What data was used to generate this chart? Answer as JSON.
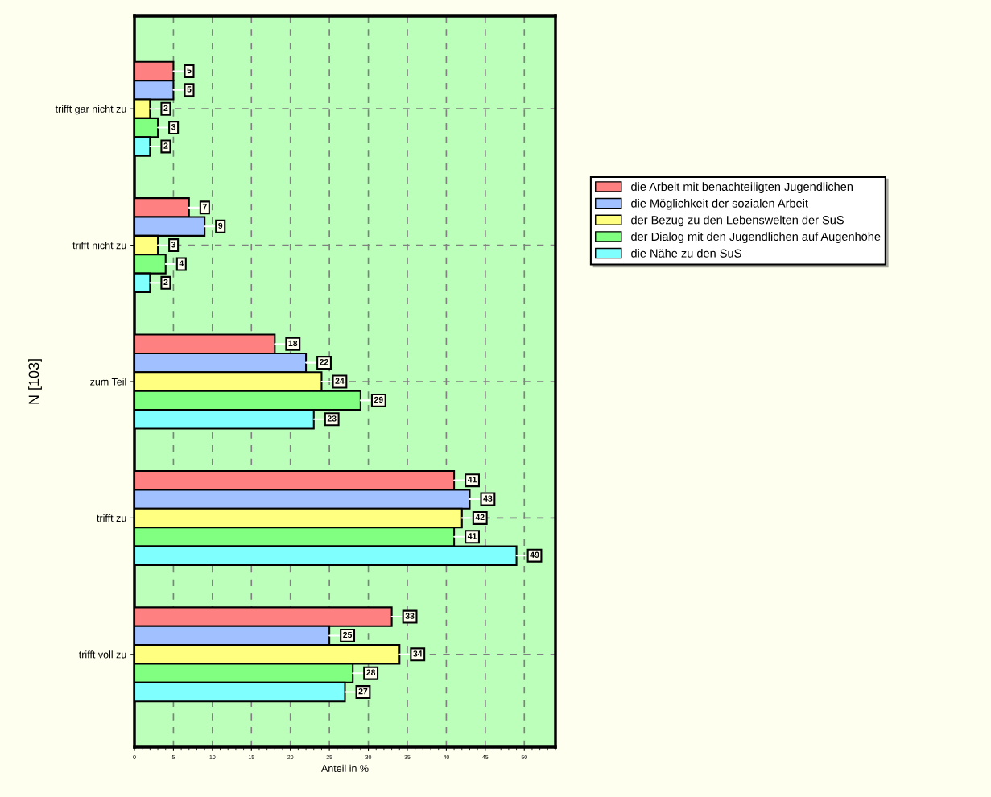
{
  "chart_data": {
    "type": "bar",
    "orientation": "horizontal",
    "xlabel": "Anteil in %",
    "ylabel": "N [103]",
    "categories": [
      "trifft gar nicht zu",
      "trifft nicht zu",
      "zum Teil",
      "trifft zu",
      "trifft voll zu"
    ],
    "series": [
      {
        "name": "die Arbeit mit benachteiligten Jugendlichen",
        "color": "#ff8080",
        "values": [
          5,
          7,
          18,
          41,
          33
        ]
      },
      {
        "name": "die Möglichkeit der sozialen Arbeit",
        "color": "#a0c0ff",
        "values": [
          5,
          9,
          22,
          43,
          25
        ]
      },
      {
        "name": "der Bezug zu den Lebenswelten der SuS",
        "color": "#ffff80",
        "values": [
          2,
          3,
          24,
          42,
          34
        ]
      },
      {
        "name": "der Dialog mit den Jugendlichen auf Augenhöhe",
        "color": "#80ff80",
        "values": [
          3,
          4,
          29,
          41,
          28
        ]
      },
      {
        "name": "die Nähe zu den SuS",
        "color": "#80ffff",
        "values": [
          2,
          2,
          23,
          49,
          27
        ]
      }
    ],
    "xlim": [
      0,
      54
    ],
    "xticks": [
      0,
      5,
      10,
      15,
      20,
      25,
      30,
      35,
      40,
      45,
      50
    ],
    "grid": true,
    "legend": "right",
    "data_labels": true
  }
}
